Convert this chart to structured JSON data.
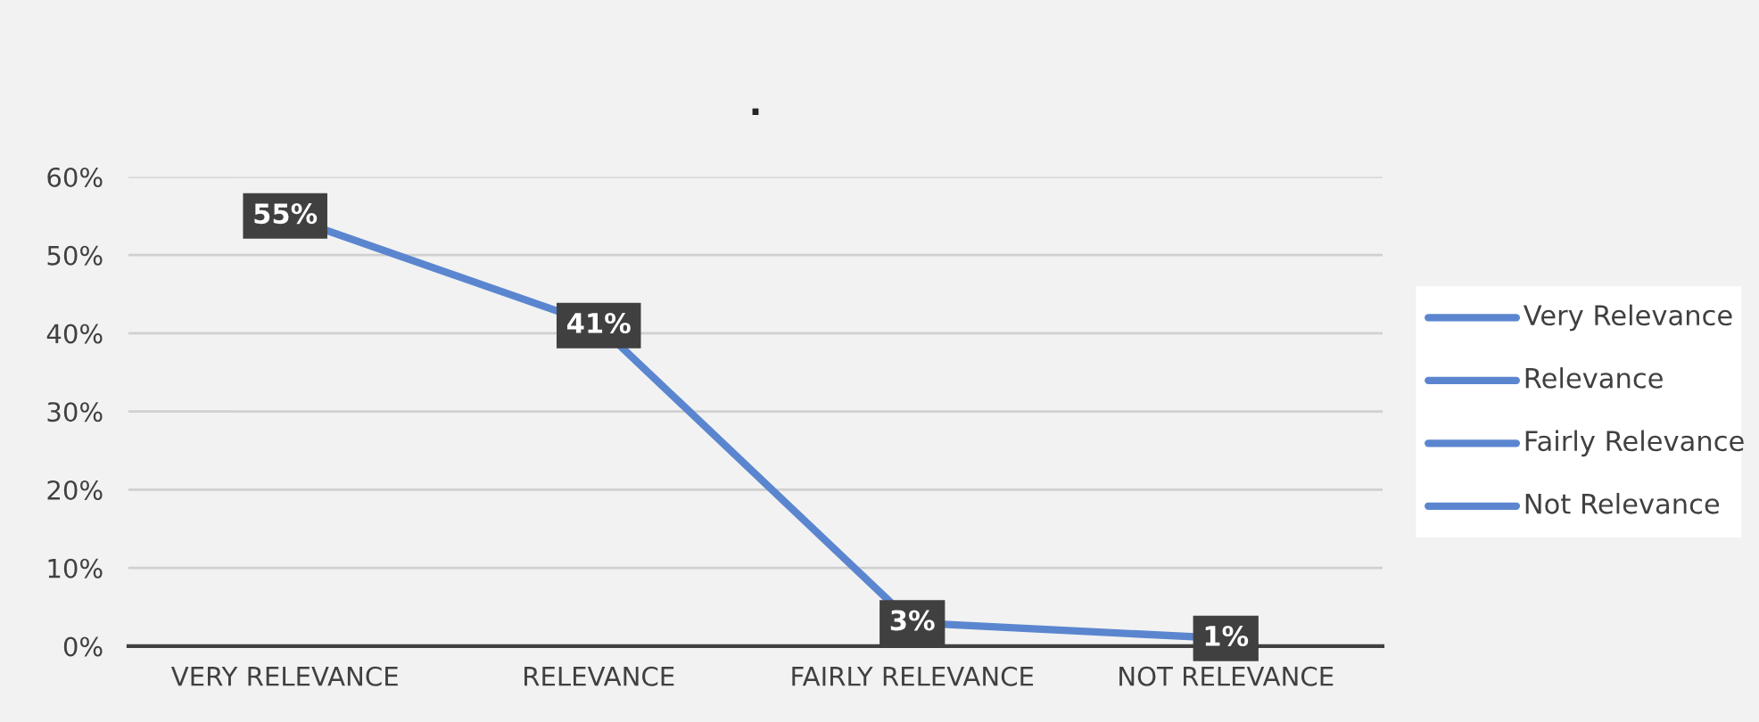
{
  "chart_data": {
    "type": "line",
    "title": ".",
    "categories": [
      "VERY RELEVANCE",
      "RELEVANCE",
      "FAIRLY RELEVANCE",
      "NOT RELEVANCE"
    ],
    "series": [
      {
        "color": "#5b86cf",
        "values": [
          55,
          41,
          3,
          1
        ],
        "value_labels": [
          "55%",
          "41%",
          "3%",
          "1%"
        ]
      }
    ],
    "annotations": [
      "Very Relevance",
      "Relevance",
      "Fairly Relevance",
      "Not Relevance"
    ],
    "ylim": [
      0,
      60
    ],
    "yticks": [
      {
        "value": 0,
        "label": "0%"
      },
      {
        "value": 10,
        "label": "10%"
      },
      {
        "value": 20,
        "label": "20%"
      },
      {
        "value": 30,
        "label": "30%"
      },
      {
        "value": 40,
        "label": "40%"
      },
      {
        "value": 50,
        "label": "50%"
      },
      {
        "value": 60,
        "label": "60%"
      }
    ],
    "grid": "y",
    "line_style": "solid"
  }
}
